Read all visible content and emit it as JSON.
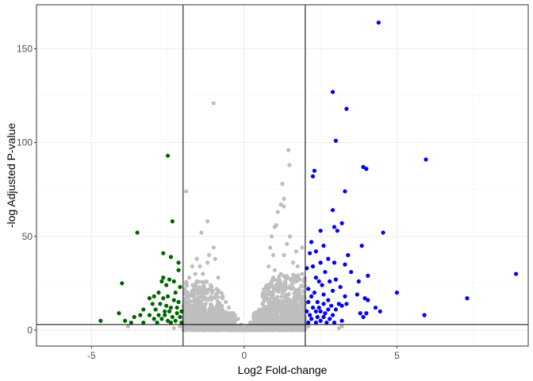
{
  "chart_data": {
    "type": "scatter",
    "title": "",
    "xlabel": "Log2 Fold-change",
    "ylabel": "-log Adjusted P-value",
    "xlim": [
      -6.8,
      9.3
    ],
    "ylim": [
      -8.5,
      173.5
    ],
    "xticks": [
      -5,
      0,
      5
    ],
    "yticks": [
      0,
      50,
      100,
      150
    ],
    "grid": true,
    "legend": "none",
    "thresholds": {
      "vertical_lines_x": [
        -2,
        2
      ],
      "horizontal_line_y": 3
    },
    "series": [
      {
        "color": "#bebebe",
        "points": [
          [
            -1.0,
            121
          ],
          [
            1.45,
            96
          ],
          [
            1.48,
            88
          ],
          [
            -1.9,
            74
          ],
          [
            -1.2,
            58
          ],
          [
            -1.4,
            52
          ],
          [
            1.3,
            66
          ],
          [
            1.1,
            63
          ],
          [
            1.2,
            67
          ],
          [
            1.25,
            78
          ],
          [
            1.3,
            70
          ],
          [
            1.0,
            55
          ],
          [
            1.05,
            56
          ],
          [
            0.9,
            50
          ],
          [
            0.85,
            44
          ],
          [
            1.5,
            50
          ],
          [
            1.4,
            46
          ],
          [
            0.95,
            40
          ],
          [
            1.3,
            40
          ],
          [
            1.7,
            42
          ],
          [
            1.9,
            44
          ],
          [
            -1.0,
            44
          ],
          [
            -0.95,
            38
          ],
          [
            -1.2,
            36
          ],
          [
            -1.15,
            40
          ],
          [
            -1.45,
            34
          ],
          [
            -1.55,
            38
          ],
          [
            -1.6,
            30
          ],
          [
            -1.7,
            34
          ],
          [
            -1.35,
            30
          ],
          [
            -0.85,
            28
          ],
          [
            -1.25,
            26
          ],
          [
            -1.55,
            26
          ],
          [
            -1.8,
            28
          ],
          [
            -1.65,
            24
          ],
          [
            -1.1,
            24
          ],
          [
            0.8,
            34
          ],
          [
            1.0,
            32
          ],
          [
            1.2,
            30
          ],
          [
            1.4,
            28
          ],
          [
            1.6,
            36
          ],
          [
            1.75,
            34
          ],
          [
            1.9,
            30
          ],
          [
            0.95,
            28
          ],
          [
            1.15,
            26
          ],
          [
            1.35,
            24
          ],
          [
            1.55,
            22
          ],
          [
            1.8,
            22
          ],
          [
            1.95,
            26
          ],
          [
            0.9,
            24
          ],
          [
            0.75,
            22
          ],
          [
            -0.9,
            22
          ],
          [
            -1.05,
            20
          ],
          [
            -1.3,
            20
          ],
          [
            -1.5,
            20
          ],
          [
            -1.7,
            20
          ],
          [
            -1.85,
            19
          ],
          [
            -1.95,
            22
          ],
          [
            -0.7,
            18
          ],
          [
            -0.6,
            15
          ],
          [
            -0.5,
            12
          ],
          [
            -0.35,
            9
          ],
          [
            -0.2,
            6
          ],
          [
            0.3,
            7
          ],
          [
            0.5,
            11
          ],
          [
            0.6,
            14
          ],
          [
            0.7,
            18
          ],
          [
            0.85,
            20
          ],
          [
            1.05,
            22
          ],
          [
            1.25,
            20
          ],
          [
            1.45,
            19
          ],
          [
            1.65,
            20
          ],
          [
            1.85,
            18
          ],
          [
            1.98,
            17
          ],
          [
            -1.2,
            16
          ],
          [
            -1.4,
            15
          ],
          [
            -1.6,
            14
          ],
          [
            -1.8,
            15
          ],
          [
            -1.95,
            14
          ],
          [
            1.1,
            16
          ],
          [
            1.3,
            15
          ],
          [
            1.5,
            14
          ],
          [
            1.7,
            13
          ],
          [
            1.9,
            12
          ],
          [
            -0.8,
            13
          ],
          [
            -1.0,
            12
          ],
          [
            -1.3,
            11
          ],
          [
            -1.7,
            10
          ],
          [
            0.8,
            12
          ],
          [
            1.0,
            11
          ],
          [
            1.2,
            10
          ],
          [
            1.6,
            9
          ],
          [
            1.95,
            8
          ],
          [
            -0.4,
            5
          ],
          [
            0.2,
            4
          ],
          [
            -0.1,
            3
          ],
          [
            0.1,
            2
          ],
          [
            0.0,
            1
          ],
          [
            -0.6,
            4
          ],
          [
            0.6,
            5
          ],
          [
            -1.5,
            5
          ],
          [
            1.5,
            4
          ],
          [
            -2.1,
            2
          ],
          [
            2.1,
            2
          ],
          [
            -2.3,
            1
          ],
          [
            3.1,
            1
          ],
          [
            3.2,
            2
          ],
          [
            -3.8,
            2
          ],
          [
            1.8,
            7
          ],
          [
            -1.8,
            7
          ]
        ],
        "dense_cloud": {
          "clusters": [
            {
              "x_range": [
                -2.0,
                2.0
              ],
              "y_range": [
                0,
                6
              ],
              "n": 1400
            },
            {
              "x_range": [
                -2.0,
                -0.3
              ],
              "y_range": [
                4,
                14
              ],
              "n": 380
            },
            {
              "x_range": [
                0.3,
                2.0
              ],
              "y_range": [
                4,
                16
              ],
              "n": 420
            },
            {
              "x_range": [
                0.6,
                2.0
              ],
              "y_range": [
                12,
                30
              ],
              "n": 160
            },
            {
              "x_range": [
                -2.0,
                -0.7
              ],
              "y_range": [
                12,
                26
              ],
              "n": 110
            }
          ]
        }
      },
      {
        "color": "#006400",
        "points": [
          [
            -2.5,
            93
          ],
          [
            -2.35,
            58
          ],
          [
            -3.5,
            52
          ],
          [
            -2.65,
            41
          ],
          [
            -2.4,
            39
          ],
          [
            -2.15,
            36
          ],
          [
            -2.15,
            32
          ],
          [
            -2.65,
            28
          ],
          [
            -2.45,
            27
          ],
          [
            -2.3,
            26
          ],
          [
            -2.7,
            26
          ],
          [
            -4.0,
            25
          ],
          [
            -2.55,
            24
          ],
          [
            -2.1,
            23
          ],
          [
            -2.8,
            20
          ],
          [
            -2.25,
            20
          ],
          [
            -2.95,
            18
          ],
          [
            -2.5,
            18
          ],
          [
            -3.1,
            17
          ],
          [
            -2.65,
            17
          ],
          [
            -2.3,
            16
          ],
          [
            -2.15,
            15
          ],
          [
            -3.0,
            14
          ],
          [
            -2.75,
            14
          ],
          [
            -2.55,
            13
          ],
          [
            -2.4,
            12
          ],
          [
            -2.2,
            12
          ],
          [
            -3.3,
            11
          ],
          [
            -2.9,
            11
          ],
          [
            -2.6,
            10
          ],
          [
            -2.45,
            10
          ],
          [
            -2.05,
            10
          ],
          [
            -2.2,
            9
          ],
          [
            -3.4,
            8
          ],
          [
            -3.1,
            8
          ],
          [
            -2.8,
            8
          ],
          [
            -2.6,
            8
          ],
          [
            -2.35,
            7
          ],
          [
            -2.1,
            7
          ],
          [
            -4.1,
            9
          ],
          [
            -3.6,
            7
          ],
          [
            -2.95,
            6
          ],
          [
            -2.7,
            6
          ],
          [
            -2.5,
            5
          ],
          [
            -2.25,
            5
          ],
          [
            -4.7,
            5
          ],
          [
            -3.9,
            5
          ],
          [
            -3.7,
            4
          ],
          [
            -3.3,
            4
          ],
          [
            -2.85,
            4
          ],
          [
            -2.4,
            4
          ],
          [
            -2.05,
            4
          ]
        ]
      },
      {
        "color": "#0000ff",
        "points": [
          [
            4.4,
            164
          ],
          [
            2.9,
            127
          ],
          [
            3.35,
            118
          ],
          [
            3.0,
            101
          ],
          [
            5.95,
            91
          ],
          [
            3.9,
            87
          ],
          [
            4.0,
            86
          ],
          [
            2.3,
            85
          ],
          [
            2.25,
            82
          ],
          [
            3.3,
            74
          ],
          [
            2.9,
            64
          ],
          [
            3.2,
            57
          ],
          [
            2.95,
            55
          ],
          [
            3.05,
            53
          ],
          [
            2.5,
            53
          ],
          [
            4.55,
            52
          ],
          [
            2.2,
            47
          ],
          [
            2.6,
            45
          ],
          [
            3.85,
            45
          ],
          [
            2.35,
            42
          ],
          [
            2.15,
            41
          ],
          [
            3.4,
            40
          ],
          [
            2.75,
            38
          ],
          [
            2.5,
            36
          ],
          [
            2.95,
            36
          ],
          [
            3.3,
            35
          ],
          [
            2.25,
            34
          ],
          [
            2.05,
            33
          ],
          [
            3.5,
            31
          ],
          [
            2.65,
            31
          ],
          [
            8.9,
            30
          ],
          [
            4.05,
            29
          ],
          [
            2.35,
            28
          ],
          [
            3.0,
            27
          ],
          [
            2.8,
            26
          ],
          [
            3.75,
            26
          ],
          [
            2.45,
            26
          ],
          [
            2.55,
            24
          ],
          [
            3.15,
            23
          ],
          [
            2.1,
            22
          ],
          [
            2.9,
            21
          ],
          [
            2.3,
            20
          ],
          [
            5.0,
            20
          ],
          [
            3.7,
            19
          ],
          [
            2.6,
            19
          ],
          [
            2.2,
            18
          ],
          [
            3.3,
            18
          ],
          [
            3.95,
            17
          ],
          [
            4.05,
            16
          ],
          [
            7.3,
            17
          ],
          [
            2.75,
            16
          ],
          [
            2.4,
            15
          ],
          [
            2.1,
            15
          ],
          [
            3.1,
            14
          ],
          [
            3.35,
            14
          ],
          [
            2.6,
            14
          ],
          [
            2.85,
            13
          ],
          [
            3.2,
            13
          ],
          [
            4.3,
            12
          ],
          [
            2.45,
            12
          ],
          [
            2.25,
            12
          ],
          [
            2.75,
            11
          ],
          [
            3.0,
            11
          ],
          [
            2.5,
            10
          ],
          [
            4.45,
            10
          ],
          [
            2.05,
            10
          ],
          [
            2.35,
            10
          ],
          [
            4.0,
            9
          ],
          [
            3.8,
            9
          ],
          [
            2.65,
            9
          ],
          [
            2.9,
            8
          ],
          [
            2.15,
            8
          ],
          [
            5.9,
            8
          ],
          [
            2.4,
            7
          ],
          [
            2.6,
            7
          ],
          [
            3.9,
            7
          ],
          [
            2.2,
            6
          ],
          [
            2.8,
            6
          ],
          [
            3.2,
            5
          ],
          [
            2.5,
            5
          ],
          [
            2.1,
            4
          ],
          [
            2.35,
            4
          ],
          [
            2.7,
            4
          ],
          [
            2.95,
            4
          ]
        ]
      }
    ]
  }
}
